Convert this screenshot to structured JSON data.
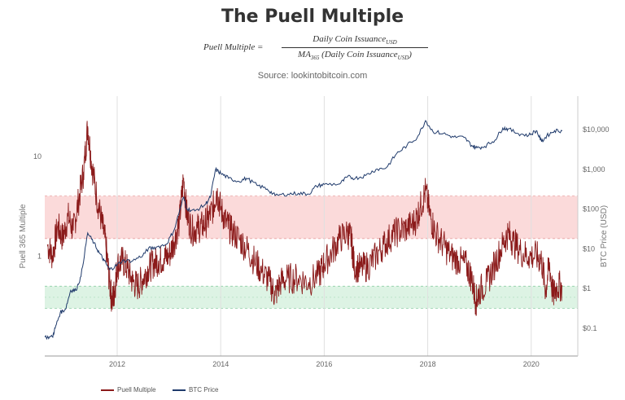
{
  "title": "The Puell Multiple",
  "formula": {
    "lhs": "Puell Multiple =",
    "numerator": "Daily Coin Issuance",
    "numerator_sub": "USD",
    "denominator_prefix": "MA",
    "denominator_prefix_sub": "365",
    "denominator_body": " (Daily Coin Issuance",
    "denominator_sub": "USD",
    "denominator_close": ")"
  },
  "source": "Source: lookintobitcoin.com",
  "chart_data": {
    "type": "line",
    "title": "The Puell Multiple",
    "xlabel": "",
    "ylabel_left": "Puell 365 Multiple",
    "ylabel_right": "BTC Price (USD)",
    "x_ticks": [
      "2012",
      "2014",
      "2016",
      "2018",
      "2020"
    ],
    "xlim": [
      2010.6,
      2020.9
    ],
    "left_axis": {
      "scale": "log",
      "ylim": [
        0.1,
        40
      ],
      "ticks": [
        "10",
        "1"
      ]
    },
    "right_axis": {
      "scale": "log",
      "ylim": [
        0.02,
        70000
      ],
      "ticks": [
        "$10,000",
        "$1,000",
        "$100",
        "$10",
        "$1",
        "$0.1"
      ]
    },
    "bands": [
      {
        "name": "overvalued zone",
        "from": 1.5,
        "to": 4,
        "color": "#fbdada"
      },
      {
        "name": "undervalued zone",
        "from": 0.3,
        "to": 0.5,
        "color": "#ddf3e4"
      }
    ],
    "series": [
      {
        "name": "Puell Multiple",
        "axis": "left",
        "color": "#8b1a1a",
        "points": [
          [
            2010.65,
            1.3
          ],
          [
            2010.75,
            1.0
          ],
          [
            2010.85,
            2.0
          ],
          [
            2010.95,
            1.5
          ],
          [
            2011.05,
            2.5
          ],
          [
            2011.15,
            1.8
          ],
          [
            2011.25,
            3.5
          ],
          [
            2011.35,
            7.0
          ],
          [
            2011.43,
            20.0
          ],
          [
            2011.5,
            9.0
          ],
          [
            2011.6,
            4.0
          ],
          [
            2011.7,
            2.2
          ],
          [
            2011.78,
            1.3
          ],
          [
            2011.85,
            0.55
          ],
          [
            2011.9,
            0.35
          ],
          [
            2011.95,
            0.45
          ],
          [
            2012.0,
            0.8
          ],
          [
            2012.1,
            0.9
          ],
          [
            2012.2,
            0.75
          ],
          [
            2012.3,
            0.55
          ],
          [
            2012.4,
            0.5
          ],
          [
            2012.5,
            0.6
          ],
          [
            2012.6,
            0.75
          ],
          [
            2012.7,
            0.85
          ],
          [
            2012.8,
            0.9
          ],
          [
            2012.9,
            0.95
          ],
          [
            2013.0,
            1.0
          ],
          [
            2013.1,
            1.4
          ],
          [
            2013.2,
            2.2
          ],
          [
            2013.28,
            6.0
          ],
          [
            2013.35,
            2.5
          ],
          [
            2013.45,
            1.8
          ],
          [
            2013.55,
            1.9
          ],
          [
            2013.65,
            2.0
          ],
          [
            2013.75,
            2.3
          ],
          [
            2013.85,
            3.0
          ],
          [
            2013.92,
            4.5
          ],
          [
            2014.0,
            3.0
          ],
          [
            2014.1,
            2.2
          ],
          [
            2014.2,
            1.8
          ],
          [
            2014.35,
            1.5
          ],
          [
            2014.5,
            1.2
          ],
          [
            2014.65,
            0.9
          ],
          [
            2014.8,
            0.7
          ],
          [
            2014.95,
            0.55
          ],
          [
            2015.05,
            0.4
          ],
          [
            2015.15,
            0.55
          ],
          [
            2015.3,
            0.6
          ],
          [
            2015.5,
            0.6
          ],
          [
            2015.7,
            0.55
          ],
          [
            2015.9,
            0.65
          ],
          [
            2016.0,
            0.85
          ],
          [
            2016.15,
            1.1
          ],
          [
            2016.3,
            1.5
          ],
          [
            2016.45,
            1.7
          ],
          [
            2016.52,
            1.5
          ],
          [
            2016.58,
            0.8
          ],
          [
            2016.7,
            0.75
          ],
          [
            2016.85,
            0.8
          ],
          [
            2017.0,
            1.0
          ],
          [
            2017.15,
            1.3
          ],
          [
            2017.3,
            1.6
          ],
          [
            2017.45,
            1.8
          ],
          [
            2017.6,
            1.9
          ],
          [
            2017.75,
            2.2
          ],
          [
            2017.85,
            3.0
          ],
          [
            2017.96,
            4.5
          ],
          [
            2018.05,
            2.5
          ],
          [
            2018.15,
            1.7
          ],
          [
            2018.3,
            1.3
          ],
          [
            2018.45,
            1.0
          ],
          [
            2018.6,
            0.9
          ],
          [
            2018.75,
            0.8
          ],
          [
            2018.85,
            0.6
          ],
          [
            2018.93,
            0.35
          ],
          [
            2019.0,
            0.45
          ],
          [
            2019.15,
            0.55
          ],
          [
            2019.3,
            0.85
          ],
          [
            2019.45,
            1.3
          ],
          [
            2019.55,
            1.7
          ],
          [
            2019.65,
            1.4
          ],
          [
            2019.8,
            1.1
          ],
          [
            2019.95,
            1.0
          ],
          [
            2020.1,
            1.0
          ],
          [
            2020.2,
            0.9
          ],
          [
            2020.28,
            0.45
          ],
          [
            2020.35,
            0.85
          ],
          [
            2020.42,
            0.4
          ],
          [
            2020.5,
            0.5
          ],
          [
            2020.6,
            0.5
          ]
        ]
      },
      {
        "name": "BTC Price",
        "axis": "right",
        "color": "#1f3a6b",
        "points": [
          [
            2010.6,
            0.06
          ],
          [
            2010.75,
            0.06
          ],
          [
            2010.8,
            0.1
          ],
          [
            2010.9,
            0.25
          ],
          [
            2011.0,
            0.3
          ],
          [
            2011.1,
            0.9
          ],
          [
            2011.2,
            0.9
          ],
          [
            2011.3,
            2.0
          ],
          [
            2011.43,
            25
          ],
          [
            2011.55,
            14
          ],
          [
            2011.65,
            8
          ],
          [
            2011.75,
            5
          ],
          [
            2011.85,
            3
          ],
          [
            2011.95,
            3.5
          ],
          [
            2012.1,
            5
          ],
          [
            2012.3,
            5
          ],
          [
            2012.5,
            7
          ],
          [
            2012.6,
            10
          ],
          [
            2012.75,
            11
          ],
          [
            2012.95,
            13
          ],
          [
            2013.1,
            30
          ],
          [
            2013.28,
            200
          ],
          [
            2013.35,
            100
          ],
          [
            2013.5,
            90
          ],
          [
            2013.7,
            130
          ],
          [
            2013.8,
            200
          ],
          [
            2013.9,
            1000
          ],
          [
            2014.0,
            800
          ],
          [
            2014.15,
            600
          ],
          [
            2014.35,
            500
          ],
          [
            2014.5,
            600
          ],
          [
            2014.7,
            400
          ],
          [
            2014.9,
            320
          ],
          [
            2015.05,
            220
          ],
          [
            2015.3,
            240
          ],
          [
            2015.5,
            250
          ],
          [
            2015.7,
            240
          ],
          [
            2015.85,
            380
          ],
          [
            2016.0,
            420
          ],
          [
            2016.3,
            430
          ],
          [
            2016.45,
            650
          ],
          [
            2016.6,
            600
          ],
          [
            2016.8,
            700
          ],
          [
            2017.0,
            1000
          ],
          [
            2017.2,
            1100
          ],
          [
            2017.4,
            2500
          ],
          [
            2017.6,
            4000
          ],
          [
            2017.8,
            6500
          ],
          [
            2017.96,
            17000
          ],
          [
            2018.1,
            9000
          ],
          [
            2018.3,
            8000
          ],
          [
            2018.5,
            6500
          ],
          [
            2018.7,
            6400
          ],
          [
            2018.85,
            4000
          ],
          [
            2018.95,
            3500
          ],
          [
            2019.1,
            3800
          ],
          [
            2019.3,
            5500
          ],
          [
            2019.45,
            11000
          ],
          [
            2019.55,
            10500
          ],
          [
            2019.75,
            8000
          ],
          [
            2019.95,
            7200
          ],
          [
            2020.1,
            9500
          ],
          [
            2020.2,
            5000
          ],
          [
            2020.3,
            7000
          ],
          [
            2020.45,
            9500
          ],
          [
            2020.6,
            9400
          ]
        ]
      }
    ]
  },
  "legend": {
    "items": [
      {
        "label": "Puell Multiple",
        "color": "#8b1a1a"
      },
      {
        "label": "BTC Price",
        "color": "#1f3a6b"
      }
    ]
  }
}
